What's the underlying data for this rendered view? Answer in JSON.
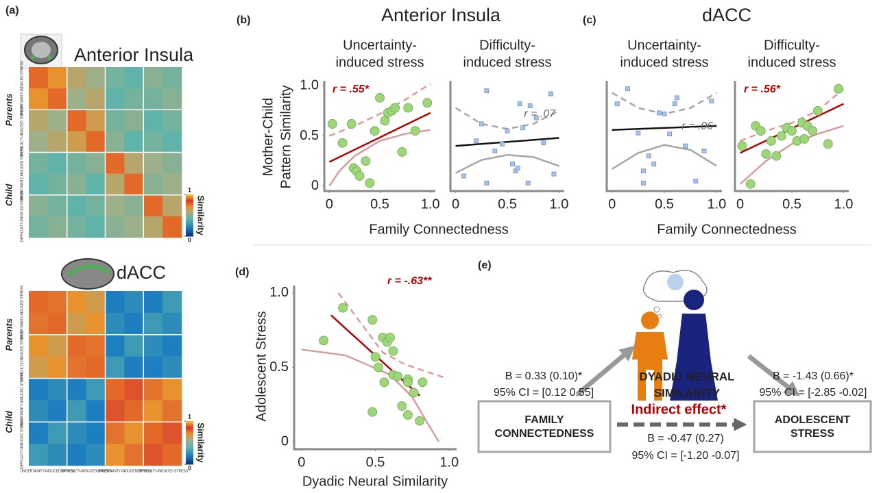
{
  "figure": {
    "labels": [
      "(a)",
      "(b)",
      "(c)",
      "(d)",
      "(e)"
    ],
    "b": {
      "title": "Anterior Insula",
      "xlabel": "Family Connectedness",
      "ylabel": [
        "Mother-Child",
        "Pattern Similarity"
      ]
    },
    "c": {
      "title": "dACC",
      "xlabel": "Family Connectedness"
    }
  },
  "chart_data": [
    {
      "type": "heatmap",
      "title": "Anterior Insula",
      "zlim": [
        0,
        1
      ],
      "row_groups": [
        "Parents",
        "Child"
      ],
      "row_labels": [
        "UNCERTAINTY-INDUCED STRESS",
        "DIFFICULTY-INDUCED STRESS",
        "UNCERTAINTY-INDUCED STRESS",
        "DIFFICULTY-INDUCED STRESS"
      ],
      "colorbar": {
        "ticks": [
          0,
          1
        ],
        "label": "Similarity"
      },
      "values": [
        [
          0.9,
          0.7,
          0.6,
          0.55,
          0.45,
          0.4,
          0.5,
          0.45
        ],
        [
          0.7,
          0.9,
          0.55,
          0.6,
          0.4,
          0.45,
          0.45,
          0.5
        ],
        [
          0.6,
          0.55,
          0.9,
          0.65,
          0.45,
          0.5,
          0.4,
          0.45
        ],
        [
          0.55,
          0.6,
          0.65,
          0.9,
          0.5,
          0.4,
          0.45,
          0.4
        ],
        [
          0.45,
          0.4,
          0.45,
          0.5,
          0.9,
          0.6,
          0.55,
          0.5
        ],
        [
          0.4,
          0.45,
          0.5,
          0.4,
          0.6,
          0.9,
          0.5,
          0.55
        ],
        [
          0.5,
          0.45,
          0.4,
          0.45,
          0.55,
          0.5,
          0.9,
          0.6
        ],
        [
          0.45,
          0.5,
          0.45,
          0.4,
          0.5,
          0.55,
          0.6,
          0.9
        ]
      ]
    },
    {
      "type": "heatmap",
      "title": "dACC",
      "zlim": [
        0,
        1
      ],
      "row_groups": [
        "Parents",
        "Child"
      ],
      "row_labels": [
        "UNCERTAINTY-INDUCED STRESS",
        "DIFFICULTY-INDUCED STRESS",
        "UNCERTAINTY-INDUCED STRESS",
        "DIFFICULTY-INDUCED STRESS"
      ],
      "col_labels": [
        "UNCERTAINTY-INDUCED STRESS",
        "DIFFICULTY-INDUCED STRESS",
        "UNCERTAINTY-INDUCED STRESS",
        "DIFFICULTY-INDUCED STRESS"
      ],
      "colorbar": {
        "ticks": [
          0,
          1
        ],
        "label": "Similarity"
      },
      "values": [
        [
          0.9,
          0.75,
          0.7,
          0.65,
          0.2,
          0.25,
          0.2,
          0.3
        ],
        [
          0.75,
          0.9,
          0.65,
          0.7,
          0.25,
          0.2,
          0.3,
          0.25
        ],
        [
          0.7,
          0.65,
          0.9,
          0.75,
          0.2,
          0.3,
          0.25,
          0.2
        ],
        [
          0.65,
          0.7,
          0.75,
          0.9,
          0.3,
          0.2,
          0.2,
          0.25
        ],
        [
          0.2,
          0.25,
          0.2,
          0.3,
          0.9,
          0.8,
          0.75,
          0.7
        ],
        [
          0.25,
          0.2,
          0.3,
          0.2,
          0.8,
          0.9,
          0.7,
          0.75
        ],
        [
          0.2,
          0.3,
          0.25,
          0.2,
          0.75,
          0.7,
          0.9,
          0.8
        ],
        [
          0.3,
          0.25,
          0.2,
          0.25,
          0.7,
          0.75,
          0.8,
          0.9
        ]
      ]
    },
    {
      "type": "scatter",
      "title": [
        "Uncertainty-",
        "induced stress"
      ],
      "marker": "circle",
      "color": "#9fd67a",
      "xlim": [
        -0.05,
        1.05
      ],
      "ylim": [
        -0.05,
        1.05
      ],
      "xticks": [
        0,
        0.5,
        {
          "value": 1,
          "label": "1.0"
        }
      ],
      "yticks": [
        0,
        0.5,
        {
          "value": 1,
          "label": "1.0"
        }
      ],
      "x": [
        0.03,
        0.13,
        0.22,
        0.24,
        0.27,
        0.3,
        0.36,
        0.4,
        0.45,
        0.5,
        0.55,
        0.58,
        0.62,
        0.65,
        0.72,
        0.78,
        0.85,
        0.97
      ],
      "y": [
        0.62,
        0.43,
        0.62,
        0.18,
        0.15,
        0.1,
        0.25,
        0.03,
        0.55,
        0.88,
        0.65,
        0.73,
        0.75,
        0.78,
        0.34,
        0.78,
        0.55,
        0.83
      ],
      "fit": {
        "x": [
          0,
          1
        ],
        "y": [
          0.24,
          0.73
        ],
        "color": "#b00000"
      },
      "ci": [
        {
          "x": [
            0,
            0.25,
            0.5,
            0.75,
            1
          ],
          "y": [
            0.5,
            0.6,
            0.72,
            0.86,
            1.02
          ],
          "color": "#d99a9a",
          "dash": true
        },
        {
          "x": [
            0,
            0.1,
            0.25,
            0.5,
            0.75,
            1
          ],
          "y": [
            0,
            0.15,
            0.3,
            0.45,
            0.52,
            0.56
          ],
          "color": "#d99a9a",
          "dash": false
        }
      ],
      "annotation": "r = .55*",
      "annotation_color": "#b00000"
    },
    {
      "type": "scatter",
      "title": [
        "Difficulty-",
        "induced stress"
      ],
      "marker": "square",
      "color": "#a9c4e8",
      "xlim": [
        -0.05,
        1.05
      ],
      "ylim": [
        -0.05,
        1.05
      ],
      "xticks": [
        0,
        0.5,
        {
          "value": 1,
          "label": "1.0"
        }
      ],
      "x": [
        0.3,
        0.08,
        0.2,
        0.25,
        0.3,
        0.38,
        0.45,
        0.55,
        0.58,
        0.6,
        0.62,
        0.65,
        0.7,
        0.72,
        0.78,
        0.85,
        0.92,
        0.95,
        0.5
      ],
      "y": [
        0.95,
        0.1,
        0.45,
        0.62,
        0.03,
        0.35,
        0.42,
        0.22,
        0.15,
        0.18,
        0.82,
        0.58,
        0.03,
        0.8,
        0.68,
        0.43,
        0.92,
        0.12,
        0.55
      ],
      "fit": {
        "x": [
          0,
          1
        ],
        "y": [
          0.4,
          0.48
        ],
        "color": "#111111"
      },
      "ci": [
        {
          "x": [
            0,
            0.25,
            0.5,
            0.75,
            1
          ],
          "y": [
            0.78,
            0.62,
            0.57,
            0.62,
            0.75
          ],
          "color": "#a6a6a6",
          "dash": true
        },
        {
          "x": [
            0,
            0.25,
            0.5,
            0.75,
            1
          ],
          "y": [
            0.13,
            0.26,
            0.31,
            0.29,
            0.2
          ],
          "color": "#a6a6a6",
          "dash": false
        }
      ],
      "annotation": "r = .07",
      "annotation_color": "#666666"
    },
    {
      "type": "scatter",
      "title": [
        "Uncertainty-",
        "induced stress"
      ],
      "marker": "square",
      "color": "#a9c4e8",
      "xlim": [
        -0.05,
        1.05
      ],
      "ylim": [
        -0.05,
        1.05
      ],
      "xticks": [
        0,
        0.5,
        {
          "value": 1,
          "label": "1.0"
        }
      ],
      "x": [
        0.05,
        0.15,
        0.25,
        0.3,
        0.35,
        0.45,
        0.5,
        0.55,
        0.6,
        0.62,
        0.7,
        0.8,
        0.88,
        0.95,
        0.4,
        0.3
      ],
      "y": [
        0.82,
        0.97,
        0.53,
        0.15,
        0.3,
        0.73,
        0.72,
        0.52,
        0.82,
        0.88,
        0.4,
        0.05,
        0.35,
        0.85,
        0.22,
        0.03
      ],
      "fit": {
        "x": [
          0,
          1
        ],
        "y": [
          0.56,
          0.6
        ],
        "color": "#111111"
      },
      "ci": [
        {
          "x": [
            0,
            0.25,
            0.5,
            0.75,
            1
          ],
          "y": [
            0.93,
            0.78,
            0.72,
            0.78,
            0.93
          ],
          "color": "#a6a6a6",
          "dash": true
        },
        {
          "x": [
            0,
            0.25,
            0.5,
            0.75,
            1
          ],
          "y": [
            0.17,
            0.33,
            0.41,
            0.36,
            0.2
          ],
          "color": "#a6a6a6",
          "dash": false
        }
      ],
      "annotation": "r = .06",
      "annotation_color": "#666666"
    },
    {
      "type": "scatter",
      "title": [
        "Difficulty-",
        "induced stress"
      ],
      "marker": "circle",
      "color": "#9fd67a",
      "xlim": [
        -0.05,
        1.05
      ],
      "ylim": [
        -0.05,
        1.05
      ],
      "xticks": [
        0,
        0.5,
        {
          "value": 1,
          "label": "1.0"
        }
      ],
      "x": [
        0.02,
        0.1,
        0.15,
        0.2,
        0.25,
        0.3,
        0.35,
        0.4,
        0.45,
        0.5,
        0.55,
        0.6,
        0.62,
        0.65,
        0.7,
        0.75,
        0.85,
        0.95
      ],
      "y": [
        0.4,
        0.02,
        0.6,
        0.55,
        0.32,
        0.45,
        0.3,
        0.5,
        0.58,
        0.55,
        0.45,
        0.63,
        0.47,
        0.6,
        0.55,
        0.75,
        0.42,
        0.97
      ],
      "fit": {
        "x": [
          0,
          1
        ],
        "y": [
          0.33,
          0.82
        ],
        "color": "#b00000"
      },
      "ci": [
        {
          "x": [
            0,
            0.25,
            0.5,
            0.75,
            1
          ],
          "y": [
            0.45,
            0.55,
            0.63,
            0.75,
            0.97
          ],
          "color": "#d99a9a",
          "dash": true
        },
        {
          "x": [
            0,
            0.25,
            0.5,
            0.75,
            1
          ],
          "y": [
            0.02,
            0.25,
            0.42,
            0.52,
            0.6
          ],
          "color": "#d99a9a",
          "dash": false
        }
      ],
      "annotation": "r = .56*",
      "annotation_color": "#b00000"
    },
    {
      "type": "scatter",
      "marker": "circle",
      "color": "#9fd67a",
      "xlabel": "Dyadic Neural Similarity",
      "ylabel": "Adolescent Stress",
      "xlim": [
        -0.05,
        1.05
      ],
      "ylim": [
        -0.05,
        1.05
      ],
      "xticks": [
        0,
        0.5,
        {
          "value": 1,
          "label": "1.0"
        }
      ],
      "yticks": [
        0,
        0.5,
        {
          "value": 1,
          "label": "1.0"
        }
      ],
      "x": [
        0.15,
        0.28,
        0.48,
        0.5,
        0.52,
        0.55,
        0.56,
        0.58,
        0.6,
        0.62,
        0.62,
        0.65,
        0.68,
        0.72,
        0.72,
        0.72,
        0.76,
        0.8,
        0.82,
        0.48
      ],
      "y": [
        0.68,
        0.9,
        0.2,
        0.57,
        0.5,
        0.7,
        0.4,
        0.67,
        0.7,
        0.45,
        0.61,
        0.44,
        0.24,
        0.42,
        0.4,
        0.18,
        0.33,
        0.14,
        0.4,
        0.82
      ],
      "fit": {
        "x": [
          0.2,
          0.8
        ],
        "y": [
          0.85,
          0.31
        ],
        "color": "#b00000"
      },
      "ci": [
        {
          "x": [
            0.25,
            0.4,
            0.55,
            0.7,
            0.85,
            0.97
          ],
          "y": [
            1.0,
            0.8,
            0.6,
            0.52,
            0.47,
            0.43
          ],
          "color": "#d99a9a",
          "dash": true
        },
        {
          "x": [
            0,
            0.3,
            0.6,
            0.75,
            0.85,
            0.93
          ],
          "y": [
            0.62,
            0.58,
            0.45,
            0.3,
            0.13,
            0
          ],
          "color": "#d99a9a",
          "dash": false
        }
      ],
      "annotation": "r = -.63**",
      "annotation_color": "#b00000"
    }
  ],
  "diagram": {
    "mediator": [
      "DYADIC NEURAL",
      "SIMILARITY"
    ],
    "x_box": [
      "FAMILY",
      "CONNECTEDNESS"
    ],
    "y_box": [
      "ADOLESCENT",
      "STRESS"
    ],
    "path_a": [
      "B = 0.33 (0.10)*",
      "95% CI = [0.12 0.55]"
    ],
    "path_b": [
      "B = -1.43 (0.66)*",
      "95% CI = [-2.85 -0.02]"
    ],
    "indirect": {
      "title": "Indirect effect*",
      "lines": [
        "B = -0.47 (0.27)",
        "95% CI = [-1.20 -0.07]"
      ]
    }
  }
}
